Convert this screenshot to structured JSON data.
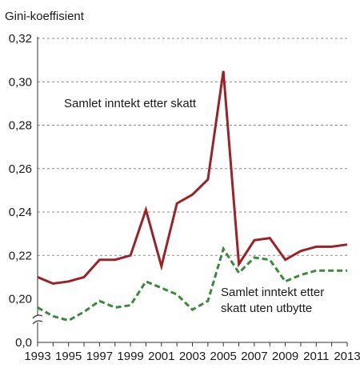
{
  "chart_data": {
    "type": "line",
    "ylabel": "Gini-koeffisient",
    "x": [
      1993,
      1994,
      1995,
      1996,
      1997,
      1998,
      1999,
      2000,
      2001,
      2002,
      2003,
      2004,
      2005,
      2006,
      2007,
      2008,
      2009,
      2010,
      2011,
      2012,
      2013
    ],
    "x_tick_labels": [
      "1993",
      "1995",
      "1997",
      "1999",
      "2001",
      "2003",
      "2005",
      "2007",
      "2009",
      "2011",
      "2013"
    ],
    "y_tick_labels": [
      "0,0",
      "0,20",
      "0,22",
      "0,24",
      "0,26",
      "0,28",
      "0,30",
      "0,32"
    ],
    "y_ticks": [
      0.2,
      0.22,
      0.24,
      0.26,
      0.28,
      0.3,
      0.32
    ],
    "ylim": [
      0.19,
      0.32
    ],
    "axis_break": true,
    "grid": true,
    "series": [
      {
        "name": "Samlet inntekt etter skatt",
        "color": "#9b2226",
        "style": "solid",
        "values": [
          0.21,
          0.207,
          0.208,
          0.21,
          0.218,
          0.218,
          0.22,
          0.241,
          0.215,
          0.244,
          0.248,
          0.255,
          0.305,
          0.216,
          0.227,
          0.228,
          0.218,
          0.222,
          0.224,
          0.224,
          0.225
        ]
      },
      {
        "name_lines": [
          "Samlet inntekt etter",
          "skatt uten utbytte"
        ],
        "color": "#3a8a3a",
        "style": "dashed",
        "values": [
          0.196,
          0.192,
          0.19,
          0.194,
          0.199,
          0.196,
          0.197,
          0.208,
          0.205,
          0.202,
          0.195,
          0.199,
          0.223,
          0.212,
          0.219,
          0.218,
          0.208,
          0.211,
          0.213,
          0.213,
          0.213
        ]
      }
    ]
  }
}
